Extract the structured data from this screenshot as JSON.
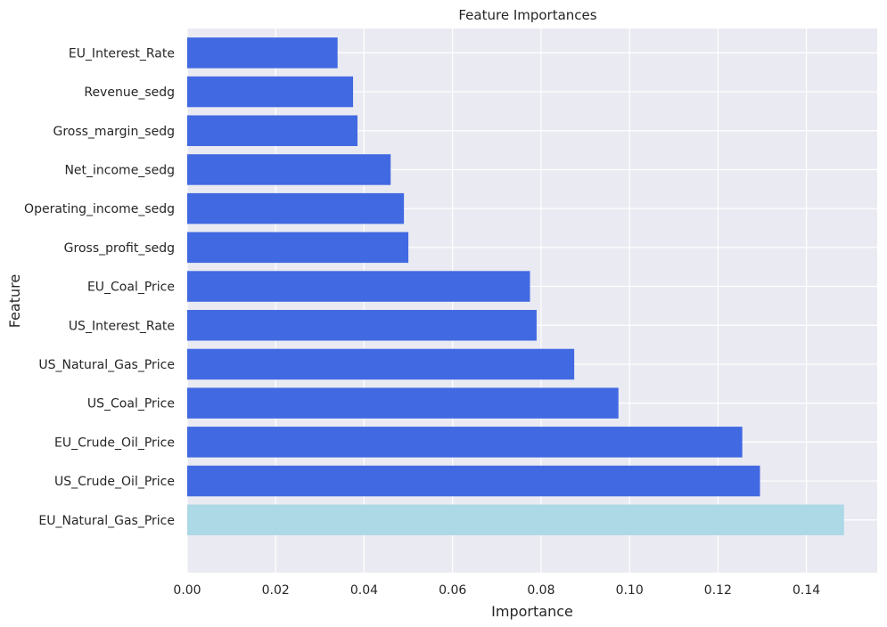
{
  "chart_data": {
    "type": "bar",
    "orientation": "horizontal",
    "title": "Feature Importances",
    "xlabel": "Importance",
    "ylabel": "Feature",
    "xlim": [
      0,
      0.156
    ],
    "xticks": [
      0.0,
      0.02,
      0.04,
      0.06,
      0.08,
      0.1,
      0.12,
      0.14
    ],
    "xtick_labels": [
      "0.00",
      "0.02",
      "0.04",
      "0.06",
      "0.08",
      "0.10",
      "0.12",
      "0.14"
    ],
    "grid": true,
    "categories": [
      "EU_Interest_Rate",
      "Revenue_sedg",
      "Gross_margin_sedg",
      "Net_income_sedg",
      "Operating_income_sedg",
      "Gross_profit_sedg",
      "EU_Coal_Price",
      "US_Interest_Rate",
      "US_Natural_Gas_Price",
      "US_Coal_Price",
      "EU_Crude_Oil_Price",
      "US_Crude_Oil_Price",
      "EU_Natural_Gas_Price"
    ],
    "values": [
      0.034,
      0.0375,
      0.0385,
      0.046,
      0.049,
      0.05,
      0.0775,
      0.079,
      0.0875,
      0.0975,
      0.1255,
      0.1295,
      0.1485
    ],
    "highlight_index": 12,
    "colors": {
      "bar": "#4169e1",
      "highlight": "#add8e6",
      "plot_background": "#eaeaf2",
      "grid": "#ffffff"
    }
  }
}
